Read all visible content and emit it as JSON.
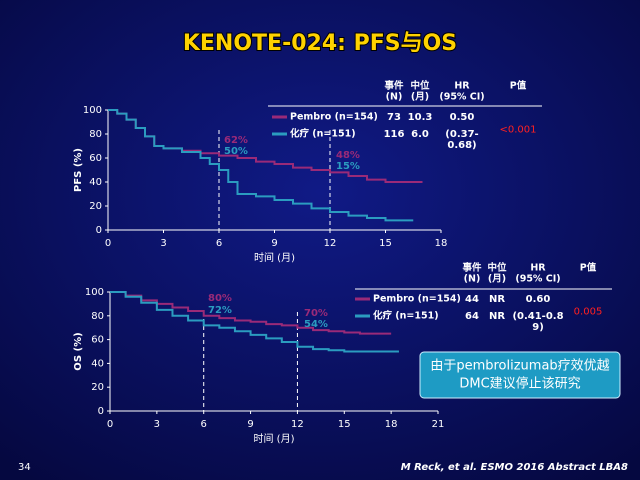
{
  "title": "KENOTE-024: PFS与OS",
  "callout": [
    "由于pembrolizumab疗效优越",
    "DMC建议停止该研究"
  ],
  "footer": "M Reck, et al.  ESMO  2016 Abstract LBA8",
  "page_number": "34",
  "chart_data": [
    {
      "type": "line",
      "step": true,
      "ylabel": "PFS (%)",
      "xlabel": "时间 (月)",
      "xlim": [
        0,
        18
      ],
      "xticks": [
        0,
        3,
        6,
        9,
        12,
        15,
        18
      ],
      "ylim": [
        0,
        100
      ],
      "yticks": [
        0,
        20,
        40,
        60,
        80,
        100
      ],
      "series": [
        {
          "name": "Pembro (n=154)",
          "color": "#9a2a78",
          "x": [
            0,
            0.5,
            1,
            1.5,
            2,
            2.5,
            3,
            4,
            5,
            6,
            7,
            8,
            9,
            10,
            11,
            12,
            13,
            14,
            15,
            16,
            17
          ],
          "values": [
            100,
            97,
            92,
            85,
            78,
            70,
            68,
            66,
            64,
            62,
            60,
            57,
            55,
            52,
            50,
            48,
            45,
            42,
            40,
            40,
            40
          ]
        },
        {
          "name": "化疗 (n=151)",
          "color": "#2b9cc0",
          "x": [
            0,
            0.5,
            1,
            1.5,
            2,
            2.5,
            3,
            4,
            5,
            5.5,
            6,
            6.5,
            7,
            8,
            9,
            10,
            11,
            12,
            13,
            14,
            15,
            16,
            16.5
          ],
          "values": [
            100,
            97,
            92,
            85,
            78,
            70,
            68,
            65,
            60,
            55,
            50,
            40,
            30,
            28,
            25,
            22,
            18,
            15,
            12,
            10,
            8,
            8,
            8
          ]
        }
      ],
      "annotations": [
        "62%",
        "50%",
        "48%",
        "15%"
      ],
      "stats": {
        "header": [
          [
            "事件",
            "(N)"
          ],
          [
            "中位",
            "(月)"
          ],
          [
            "HR",
            "(95% CI)"
          ],
          [
            "P值"
          ]
        ],
        "rows": [
          [
            "73",
            "10.3",
            "0.50"
          ],
          [
            "116",
            "6.0",
            "(0.37-",
            "0.68)"
          ]
        ],
        "p": "<0.001"
      }
    },
    {
      "type": "line",
      "step": true,
      "ylabel": "OS (%)",
      "xlabel": "时间 (月)",
      "xlim": [
        0,
        21
      ],
      "xticks": [
        0,
        3,
        6,
        9,
        12,
        15,
        18,
        21
      ],
      "ylim": [
        0,
        100
      ],
      "yticks": [
        0,
        20,
        40,
        60,
        80,
        100
      ],
      "series": [
        {
          "name": "Pembro (n=154)",
          "color": "#9a2a78",
          "x": [
            0,
            1,
            2,
            3,
            4,
            5,
            6,
            7,
            8,
            9,
            10,
            11,
            12,
            13,
            14,
            15,
            16,
            17,
            18
          ],
          "values": [
            100,
            97,
            93,
            90,
            87,
            84,
            80,
            78,
            76,
            75,
            73,
            72,
            70,
            68,
            67,
            66,
            65,
            65,
            65
          ]
        },
        {
          "name": "化疗 (n=151)",
          "color": "#2b9cc0",
          "x": [
            0,
            1,
            2,
            3,
            4,
            5,
            6,
            7,
            8,
            9,
            10,
            11,
            12,
            13,
            14,
            15,
            16,
            17,
            18,
            18.5
          ],
          "values": [
            100,
            96,
            91,
            85,
            80,
            76,
            72,
            70,
            67,
            64,
            61,
            58,
            54,
            52,
            51,
            50,
            50,
            50,
            50,
            50
          ]
        }
      ],
      "annotations": [
        "80%",
        "72%",
        "70%",
        "54%"
      ],
      "stats": {
        "header": [
          [
            "事件",
            "(N)"
          ],
          [
            "中位",
            "(月)"
          ],
          [
            "HR",
            "(95% CI)"
          ],
          [
            "P值"
          ]
        ],
        "rows": [
          [
            "44",
            "NR",
            "0.60"
          ],
          [
            "64",
            "NR",
            "(0.41-0.8",
            "9)"
          ]
        ],
        "p": "0.005"
      }
    }
  ]
}
